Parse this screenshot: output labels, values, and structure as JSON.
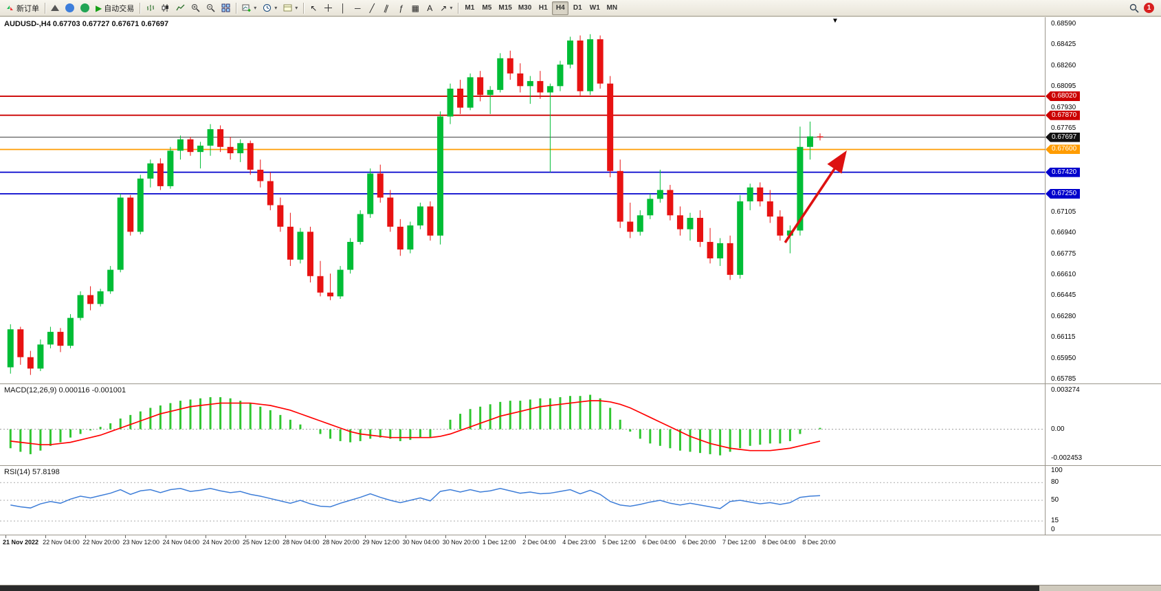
{
  "toolbar": {
    "new_order_label": "新订单",
    "autotrading_label": "自动交易",
    "text_tool_label": "A",
    "timeframes": [
      "M1",
      "M5",
      "M15",
      "M30",
      "H1",
      "H4",
      "D1",
      "W1",
      "MN"
    ],
    "active_timeframe": "H4",
    "notification_badge": "1"
  },
  "window": {
    "header_line": "AUDUSD-,H4 0.67703 0.67727 0.67671 0.67697",
    "macd_header": "MACD(12,26,9) 0.000116 -0.001001",
    "rsi_header": "RSI(14) 57.8198"
  },
  "chart_data": {
    "type": "candlestick",
    "symbol": "AUDUSD-",
    "timeframe": "H4",
    "quote": {
      "open": 0.67703,
      "high": 0.67727,
      "low": 0.67671,
      "close": 0.67697
    },
    "colors": {
      "up": "#00bd36",
      "down": "#e81212",
      "hline_red": "#cc0000",
      "hline_orange": "#ff9c00",
      "hline_blue": "#0000cc",
      "current": "#3a3a3a",
      "current_tag": "#111111",
      "macd_hist": "#30c630",
      "macd_signal": "#ff0000",
      "rsi_line": "#3d7dd8",
      "arrow": "#dd1111"
    },
    "price_axis": {
      "top": 0.6859,
      "bottom": 0.65785,
      "ticks": [
        "0.68590",
        "0.68425",
        "0.68260",
        "0.68095",
        "0.67930",
        "0.67765",
        "0.67105",
        "0.66940",
        "0.66775",
        "0.66610",
        "0.66445",
        "0.66280",
        "0.66115",
        "0.65950",
        "0.65785"
      ]
    },
    "hlines": [
      {
        "price": 0.6802,
        "label": "0.68020",
        "color": "#cc0000"
      },
      {
        "price": 0.6787,
        "label": "0.67870",
        "color": "#cc0000"
      },
      {
        "price": 0.676,
        "label": "0.67600",
        "color": "#ff9c00"
      },
      {
        "price": 0.6742,
        "label": "0.67420",
        "color": "#0000cc"
      },
      {
        "price": 0.6725,
        "label": "0.67250",
        "color": "#0000cc"
      }
    ],
    "current_price": {
      "value": 0.67697,
      "label": "0.67697"
    },
    "time_labels": [
      "21 Nov 2022",
      "22 Nov 04:00",
      "22 Nov 20:00",
      "23 Nov 12:00",
      "24 Nov 04:00",
      "24 Nov 20:00",
      "25 Nov 12:00",
      "28 Nov 04:00",
      "28 Nov 20:00",
      "29 Nov 12:00",
      "30 Nov 04:00",
      "30 Nov 20:00",
      "1 Dec 12:00",
      "2 Dec 04:00",
      "4 Dec 23:00",
      "5 Dec 12:00",
      "6 Dec 04:00",
      "6 Dec 20:00",
      "7 Dec 12:00",
      "8 Dec 04:00",
      "8 Dec 20:00"
    ],
    "bars_per_label": 4,
    "candles": [
      [
        0.6588,
        0.6622,
        0.6583,
        0.6618
      ],
      [
        0.6618,
        0.662,
        0.659,
        0.6596
      ],
      [
        0.6596,
        0.6601,
        0.6582,
        0.6587
      ],
      [
        0.6587,
        0.661,
        0.6585,
        0.6606
      ],
      [
        0.6606,
        0.662,
        0.6603,
        0.6616
      ],
      [
        0.6616,
        0.6619,
        0.66,
        0.6605
      ],
      [
        0.6605,
        0.663,
        0.6603,
        0.6627
      ],
      [
        0.6627,
        0.6648,
        0.6625,
        0.6645
      ],
      [
        0.6645,
        0.6652,
        0.6633,
        0.6638
      ],
      [
        0.6638,
        0.665,
        0.6636,
        0.6648
      ],
      [
        0.6648,
        0.6668,
        0.6646,
        0.6665
      ],
      [
        0.6665,
        0.6725,
        0.6663,
        0.6722
      ],
      [
        0.6722,
        0.6724,
        0.6692,
        0.6695
      ],
      [
        0.6695,
        0.674,
        0.6693,
        0.6737
      ],
      [
        0.6737,
        0.6752,
        0.673,
        0.6749
      ],
      [
        0.6749,
        0.6753,
        0.6728,
        0.6731
      ],
      [
        0.6731,
        0.6762,
        0.6729,
        0.6759
      ],
      [
        0.6759,
        0.6771,
        0.6752,
        0.6768
      ],
      [
        0.6768,
        0.677,
        0.6755,
        0.6758
      ],
      [
        0.6758,
        0.6766,
        0.6745,
        0.6763
      ],
      [
        0.6763,
        0.678,
        0.6755,
        0.6776
      ],
      [
        0.6776,
        0.6779,
        0.6758,
        0.6762
      ],
      [
        0.6762,
        0.677,
        0.6752,
        0.6757
      ],
      [
        0.6757,
        0.6768,
        0.675,
        0.6765
      ],
      [
        0.6765,
        0.6767,
        0.674,
        0.6744
      ],
      [
        0.6744,
        0.6752,
        0.673,
        0.6735
      ],
      [
        0.6735,
        0.6742,
        0.6712,
        0.6716
      ],
      [
        0.6716,
        0.6722,
        0.6695,
        0.6699
      ],
      [
        0.6699,
        0.671,
        0.6668,
        0.6673
      ],
      [
        0.6673,
        0.6698,
        0.667,
        0.6695
      ],
      [
        0.6695,
        0.6699,
        0.6655,
        0.666
      ],
      [
        0.666,
        0.6672,
        0.6644,
        0.6647
      ],
      [
        0.6647,
        0.6662,
        0.6641,
        0.6644
      ],
      [
        0.6644,
        0.6668,
        0.6642,
        0.6665
      ],
      [
        0.6665,
        0.669,
        0.6662,
        0.6687
      ],
      [
        0.6687,
        0.6712,
        0.6685,
        0.6709
      ],
      [
        0.6709,
        0.6745,
        0.6706,
        0.6741
      ],
      [
        0.6741,
        0.6748,
        0.6718,
        0.6722
      ],
      [
        0.6722,
        0.6728,
        0.6695,
        0.6699
      ],
      [
        0.6699,
        0.6705,
        0.6676,
        0.6681
      ],
      [
        0.6681,
        0.6703,
        0.6678,
        0.67
      ],
      [
        0.67,
        0.6718,
        0.6697,
        0.6715
      ],
      [
        0.6715,
        0.6719,
        0.6688,
        0.6692
      ],
      [
        0.6692,
        0.679,
        0.6685,
        0.6786
      ],
      [
        0.6786,
        0.6812,
        0.678,
        0.6808
      ],
      [
        0.6808,
        0.6815,
        0.6788,
        0.6793
      ],
      [
        0.6793,
        0.682,
        0.6791,
        0.6817
      ],
      [
        0.6817,
        0.6822,
        0.6798,
        0.6803
      ],
      [
        0.6803,
        0.681,
        0.6788,
        0.6807
      ],
      [
        0.6807,
        0.6836,
        0.6805,
        0.6832
      ],
      [
        0.6832,
        0.6838,
        0.6815,
        0.682
      ],
      [
        0.682,
        0.6828,
        0.6805,
        0.681
      ],
      [
        0.681,
        0.6818,
        0.6796,
        0.6814
      ],
      [
        0.6814,
        0.6822,
        0.68,
        0.6805
      ],
      [
        0.6805,
        0.6812,
        0.6742,
        0.681
      ],
      [
        0.681,
        0.683,
        0.6806,
        0.6827
      ],
      [
        0.6827,
        0.6849,
        0.6824,
        0.6846
      ],
      [
        0.6846,
        0.685,
        0.6802,
        0.6806
      ],
      [
        0.6806,
        0.6851,
        0.6803,
        0.6847
      ],
      [
        0.6847,
        0.685,
        0.6808,
        0.6812
      ],
      [
        0.6812,
        0.6818,
        0.6738,
        0.6743
      ],
      [
        0.6743,
        0.6752,
        0.6698,
        0.6703
      ],
      [
        0.6703,
        0.6718,
        0.669,
        0.6695
      ],
      [
        0.6695,
        0.6712,
        0.6692,
        0.6708
      ],
      [
        0.6708,
        0.6725,
        0.6705,
        0.6721
      ],
      [
        0.6721,
        0.6744,
        0.6718,
        0.6728
      ],
      [
        0.6728,
        0.6732,
        0.6704,
        0.6708
      ],
      [
        0.6708,
        0.6715,
        0.6692,
        0.6697
      ],
      [
        0.6697,
        0.671,
        0.6688,
        0.6706
      ],
      [
        0.6706,
        0.6712,
        0.6683,
        0.6687
      ],
      [
        0.6687,
        0.6698,
        0.667,
        0.6674
      ],
      [
        0.6674,
        0.669,
        0.6668,
        0.6686
      ],
      [
        0.6686,
        0.6692,
        0.6657,
        0.6661
      ],
      [
        0.6661,
        0.6724,
        0.6658,
        0.6719
      ],
      [
        0.6719,
        0.6733,
        0.6712,
        0.673
      ],
      [
        0.673,
        0.6734,
        0.6715,
        0.6719
      ],
      [
        0.6719,
        0.6728,
        0.6702,
        0.6707
      ],
      [
        0.6707,
        0.6712,
        0.6688,
        0.6692
      ],
      [
        0.6692,
        0.67,
        0.6678,
        0.6696
      ],
      [
        0.6696,
        0.6778,
        0.6692,
        0.6762
      ],
      [
        0.6762,
        0.6782,
        0.6752,
        0.67703
      ],
      [
        0.67703,
        0.67727,
        0.67671,
        0.67697
      ]
    ],
    "indicators": {
      "macd": {
        "name": "MACD(12,26,9)",
        "current_values": [
          0.000116,
          -0.001001
        ],
        "axis": [
          {
            "label": "0.003274",
            "value": 0.003274
          },
          {
            "label": "0.00",
            "value": 0
          },
          {
            "label": "-0.002453",
            "value": -0.002453
          }
        ],
        "histogram": [
          -0.0016,
          -0.0019,
          -0.0021,
          -0.0018,
          -0.0014,
          -0.0011,
          -0.0007,
          -0.0004,
          -0.0001,
          0.0002,
          0.0005,
          0.0009,
          0.0012,
          0.0015,
          0.0018,
          0.002,
          0.0022,
          0.0024,
          0.0025,
          0.0026,
          0.0027,
          0.0027,
          0.0026,
          0.0024,
          0.0022,
          0.0019,
          0.0016,
          0.0012,
          0.0008,
          0.0004,
          0.0,
          -0.0004,
          -0.0008,
          -0.001,
          -0.0011,
          -0.001,
          -0.0008,
          -0.0007,
          -0.0008,
          -0.001,
          -0.0009,
          -0.0007,
          -0.0007,
          0.0,
          0.0008,
          0.0013,
          0.0017,
          0.0019,
          0.0021,
          0.0023,
          0.0024,
          0.0024,
          0.0025,
          0.0026,
          0.0026,
          0.0027,
          0.0028,
          0.0028,
          0.0029,
          0.0026,
          0.0018,
          0.0008,
          -0.0002,
          -0.0008,
          -0.0012,
          -0.0014,
          -0.0016,
          -0.0018,
          -0.0019,
          -0.002,
          -0.0021,
          -0.0022,
          -0.0019,
          -0.0016,
          -0.0014,
          -0.0013,
          -0.0012,
          -0.0012,
          -0.001,
          -0.0004,
          0.0,
          0.000116
        ],
        "signal": [
          -0.001,
          -0.0011,
          -0.0012,
          -0.0013,
          -0.0013,
          -0.0012,
          -0.0011,
          -0.0009,
          -0.0007,
          -0.0005,
          -0.0002,
          0.0001,
          0.0004,
          0.0007,
          0.001,
          0.0013,
          0.0015,
          0.0017,
          0.0019,
          0.002,
          0.0021,
          0.0022,
          0.0022,
          0.0022,
          0.0022,
          0.0021,
          0.002,
          0.0018,
          0.0016,
          0.0013,
          0.001,
          0.0007,
          0.0004,
          0.0001,
          -0.0002,
          -0.0004,
          -0.0005,
          -0.0006,
          -0.0007,
          -0.0007,
          -0.0007,
          -0.0007,
          -0.0007,
          -0.0006,
          -0.0004,
          -0.0001,
          0.0002,
          0.0005,
          0.0008,
          0.0011,
          0.0013,
          0.0015,
          0.0017,
          0.0019,
          0.002,
          0.0021,
          0.0022,
          0.0023,
          0.0024,
          0.0024,
          0.0023,
          0.0021,
          0.0018,
          0.0014,
          0.001,
          0.0006,
          0.0002,
          -0.0002,
          -0.0006,
          -0.0009,
          -0.0012,
          -0.0014,
          -0.0016,
          -0.0017,
          -0.0018,
          -0.0018,
          -0.0018,
          -0.0017,
          -0.0016,
          -0.0014,
          -0.0012,
          -0.001001
        ]
      },
      "rsi": {
        "name": "RSI(14)",
        "current_value": 57.8198,
        "levels": [
          80,
          50,
          15
        ],
        "axis": [
          {
            "label": "100",
            "value": 100
          },
          {
            "label": "80",
            "value": 80
          },
          {
            "label": "50",
            "value": 50
          },
          {
            "label": "15",
            "value": 15
          },
          {
            "label": "0",
            "value": 0
          }
        ],
        "series": [
          42,
          39,
          37,
          44,
          48,
          45,
          52,
          57,
          54,
          58,
          62,
          68,
          60,
          66,
          68,
          63,
          68,
          70,
          65,
          67,
          70,
          66,
          63,
          65,
          60,
          57,
          53,
          49,
          45,
          50,
          44,
          40,
          39,
          45,
          50,
          55,
          61,
          55,
          50,
          46,
          50,
          54,
          49,
          65,
          68,
          64,
          68,
          64,
          66,
          70,
          66,
          62,
          64,
          61,
          62,
          65,
          68,
          61,
          67,
          60,
          48,
          42,
          40,
          43,
          47,
          50,
          45,
          42,
          45,
          42,
          39,
          36,
          48,
          50,
          47,
          44,
          46,
          43,
          46,
          55,
          57,
          57.8
        ],
        "ylim": [
          0,
          100
        ]
      }
    },
    "annotation_arrow": {
      "from_bar": 77.5,
      "from_price": 0.66865,
      "to_bar": 83.4,
      "to_price": 0.6756
    }
  }
}
